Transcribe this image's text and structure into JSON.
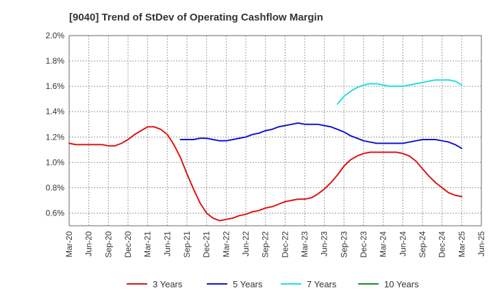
{
  "chart_data": {
    "type": "line",
    "title": "[9040]  Trend of StDev of Operating Cashflow Margin",
    "xlabel": "",
    "ylabel": "",
    "ylim": [
      0.5,
      2.0
    ],
    "y_ticks": [
      "0.6%",
      "0.8%",
      "1.0%",
      "1.2%",
      "1.4%",
      "1.6%",
      "1.8%",
      "2.0%"
    ],
    "y_tick_values": [
      0.6,
      0.8,
      1.0,
      1.2,
      1.4,
      1.6,
      1.8,
      2.0
    ],
    "x_ticks": [
      "Mar-20",
      "Jun-20",
      "Sep-20",
      "Dec-20",
      "Mar-21",
      "Jun-21",
      "Sep-21",
      "Dec-21",
      "Mar-22",
      "Jun-22",
      "Sep-22",
      "Dec-22",
      "Mar-23",
      "Jun-23",
      "Sep-23",
      "Dec-23",
      "Mar-24",
      "Jun-24",
      "Sep-24",
      "Dec-24",
      "Mar-25",
      "Jun-25"
    ],
    "grid": true,
    "legend_position": "bottom",
    "series": [
      {
        "name": "3 Years",
        "color": "#dd1111",
        "points": [
          [
            "Mar-20",
            1.15
          ],
          [
            "Apr-20",
            1.14
          ],
          [
            "May-20",
            1.14
          ],
          [
            "Jun-20",
            1.14
          ],
          [
            "Jul-20",
            1.14
          ],
          [
            "Aug-20",
            1.14
          ],
          [
            "Sep-20",
            1.13
          ],
          [
            "Oct-20",
            1.13
          ],
          [
            "Nov-20",
            1.15
          ],
          [
            "Dec-20",
            1.18
          ],
          [
            "Jan-21",
            1.22
          ],
          [
            "Feb-21",
            1.25
          ],
          [
            "Mar-21",
            1.28
          ],
          [
            "Apr-21",
            1.28
          ],
          [
            "May-21",
            1.26
          ],
          [
            "Jun-21",
            1.22
          ],
          [
            "Jul-21",
            1.14
          ],
          [
            "Aug-21",
            1.04
          ],
          [
            "Sep-21",
            0.91
          ],
          [
            "Oct-21",
            0.79
          ],
          [
            "Nov-21",
            0.68
          ],
          [
            "Dec-21",
            0.6
          ],
          [
            "Jan-22",
            0.56
          ],
          [
            "Feb-22",
            0.54
          ],
          [
            "Mar-22",
            0.55
          ],
          [
            "Apr-22",
            0.56
          ],
          [
            "May-22",
            0.58
          ],
          [
            "Jun-22",
            0.59
          ],
          [
            "Jul-22",
            0.61
          ],
          [
            "Aug-22",
            0.62
          ],
          [
            "Sep-22",
            0.64
          ],
          [
            "Oct-22",
            0.65
          ],
          [
            "Nov-22",
            0.67
          ],
          [
            "Dec-22",
            0.69
          ],
          [
            "Jan-23",
            0.7
          ],
          [
            "Feb-23",
            0.71
          ],
          [
            "Mar-23",
            0.71
          ],
          [
            "Apr-23",
            0.72
          ],
          [
            "May-23",
            0.75
          ],
          [
            "Jun-23",
            0.79
          ],
          [
            "Jul-23",
            0.84
          ],
          [
            "Aug-23",
            0.9
          ],
          [
            "Sep-23",
            0.97
          ],
          [
            "Oct-23",
            1.02
          ],
          [
            "Nov-23",
            1.05
          ],
          [
            "Dec-23",
            1.07
          ],
          [
            "Jan-24",
            1.08
          ],
          [
            "Feb-24",
            1.08
          ],
          [
            "Mar-24",
            1.08
          ],
          [
            "Apr-24",
            1.08
          ],
          [
            "May-24",
            1.08
          ],
          [
            "Jun-24",
            1.07
          ],
          [
            "Jul-24",
            1.05
          ],
          [
            "Aug-24",
            1.01
          ],
          [
            "Sep-24",
            0.95
          ],
          [
            "Oct-24",
            0.89
          ],
          [
            "Nov-24",
            0.84
          ],
          [
            "Dec-24",
            0.8
          ],
          [
            "Jan-25",
            0.76
          ],
          [
            "Feb-25",
            0.74
          ],
          [
            "Mar-25",
            0.73
          ]
        ]
      },
      {
        "name": "5 Years",
        "color": "#1111cc",
        "points": [
          [
            "Aug-21",
            1.18
          ],
          [
            "Sep-21",
            1.18
          ],
          [
            "Oct-21",
            1.18
          ],
          [
            "Nov-21",
            1.19
          ],
          [
            "Dec-21",
            1.19
          ],
          [
            "Jan-22",
            1.18
          ],
          [
            "Feb-22",
            1.17
          ],
          [
            "Mar-22",
            1.17
          ],
          [
            "Apr-22",
            1.18
          ],
          [
            "May-22",
            1.19
          ],
          [
            "Jun-22",
            1.2
          ],
          [
            "Jul-22",
            1.22
          ],
          [
            "Aug-22",
            1.23
          ],
          [
            "Sep-22",
            1.25
          ],
          [
            "Oct-22",
            1.26
          ],
          [
            "Nov-22",
            1.28
          ],
          [
            "Dec-22",
            1.29
          ],
          [
            "Jan-23",
            1.3
          ],
          [
            "Feb-23",
            1.31
          ],
          [
            "Mar-23",
            1.3
          ],
          [
            "Apr-23",
            1.3
          ],
          [
            "May-23",
            1.3
          ],
          [
            "Jun-23",
            1.29
          ],
          [
            "Jul-23",
            1.28
          ],
          [
            "Aug-23",
            1.26
          ],
          [
            "Sep-23",
            1.24
          ],
          [
            "Oct-23",
            1.21
          ],
          [
            "Nov-23",
            1.19
          ],
          [
            "Dec-23",
            1.17
          ],
          [
            "Jan-24",
            1.16
          ],
          [
            "Feb-24",
            1.15
          ],
          [
            "Mar-24",
            1.15
          ],
          [
            "Apr-24",
            1.15
          ],
          [
            "May-24",
            1.15
          ],
          [
            "Jun-24",
            1.15
          ],
          [
            "Jul-24",
            1.16
          ],
          [
            "Aug-24",
            1.17
          ],
          [
            "Sep-24",
            1.18
          ],
          [
            "Oct-24",
            1.18
          ],
          [
            "Nov-24",
            1.18
          ],
          [
            "Dec-24",
            1.17
          ],
          [
            "Jan-25",
            1.16
          ],
          [
            "Feb-25",
            1.14
          ],
          [
            "Mar-25",
            1.11
          ]
        ]
      },
      {
        "name": "7 Years",
        "color": "#22dddd",
        "points": [
          [
            "Aug-23",
            1.46
          ],
          [
            "Sep-23",
            1.52
          ],
          [
            "Oct-23",
            1.56
          ],
          [
            "Nov-23",
            1.59
          ],
          [
            "Dec-23",
            1.61
          ],
          [
            "Jan-24",
            1.62
          ],
          [
            "Feb-24",
            1.62
          ],
          [
            "Mar-24",
            1.61
          ],
          [
            "Apr-24",
            1.6
          ],
          [
            "May-24",
            1.6
          ],
          [
            "Jun-24",
            1.6
          ],
          [
            "Jul-24",
            1.61
          ],
          [
            "Aug-24",
            1.62
          ],
          [
            "Sep-24",
            1.63
          ],
          [
            "Oct-24",
            1.64
          ],
          [
            "Nov-24",
            1.65
          ],
          [
            "Dec-24",
            1.65
          ],
          [
            "Jan-25",
            1.65
          ],
          [
            "Feb-25",
            1.64
          ],
          [
            "Mar-25",
            1.61
          ]
        ]
      },
      {
        "name": "10 Years",
        "color": "#228822",
        "points": []
      }
    ]
  }
}
